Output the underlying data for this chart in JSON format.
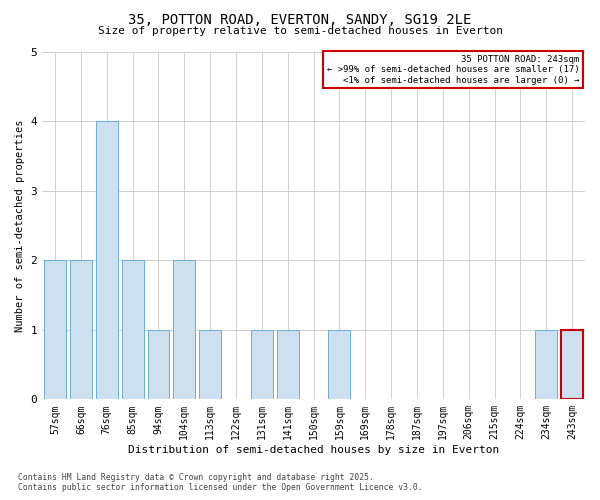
{
  "title_line1": "35, POTTON ROAD, EVERTON, SANDY, SG19 2LE",
  "title_line2": "Size of property relative to semi-detached houses in Everton",
  "xlabel": "Distribution of semi-detached houses by size in Everton",
  "ylabel": "Number of semi-detached properties",
  "categories": [
    "57sqm",
    "66sqm",
    "76sqm",
    "85sqm",
    "94sqm",
    "104sqm",
    "113sqm",
    "122sqm",
    "131sqm",
    "141sqm",
    "150sqm",
    "159sqm",
    "169sqm",
    "178sqm",
    "187sqm",
    "197sqm",
    "206sqm",
    "215sqm",
    "224sqm",
    "234sqm",
    "243sqm"
  ],
  "values": [
    2,
    2,
    4,
    2,
    1,
    2,
    1,
    0,
    1,
    1,
    0,
    1,
    0,
    0,
    0,
    0,
    0,
    0,
    0,
    1,
    1
  ],
  "bar_color": "#cce0f0",
  "bar_edgecolor": "#6baed6",
  "highlight_index": 20,
  "highlight_bar_color": "#cce0f0",
  "highlight_bar_edgecolor": "#cc0000",
  "ylim": [
    0,
    5
  ],
  "yticks": [
    0,
    1,
    2,
    3,
    4,
    5
  ],
  "legend_title": "35 POTTON ROAD: 243sqm",
  "legend_line1": "← >99% of semi-detached houses are smaller (17)",
  "legend_line2": "<1% of semi-detached houses are larger (0) →",
  "legend_edgecolor": "#cc0000",
  "footer_line1": "Contains HM Land Registry data © Crown copyright and database right 2025.",
  "footer_line2": "Contains public sector information licensed under the Open Government Licence v3.0.",
  "background_color": "#ffffff",
  "grid_color": "#d0d0d0"
}
